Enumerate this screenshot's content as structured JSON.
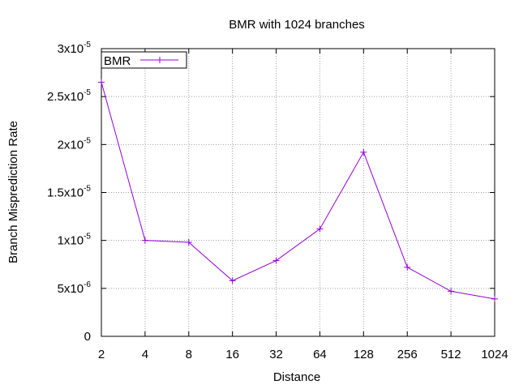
{
  "chart_data": {
    "type": "line",
    "title": "BMR with 1024 branches",
    "xlabel": "Distance",
    "ylabel": "Branch Misprediction Rate",
    "x_scale": "log2",
    "x": [
      2,
      4,
      8,
      16,
      32,
      64,
      128,
      256,
      512,
      1024
    ],
    "x_tick_labels": [
      "2",
      "4",
      "8",
      "16",
      "32",
      "64",
      "128",
      "256",
      "512",
      "1024"
    ],
    "y_ticks": [
      {
        "value": 0,
        "base": "0",
        "exp": ""
      },
      {
        "value": 5e-06,
        "base": "5x10",
        "exp": "-6"
      },
      {
        "value": 1e-05,
        "base": "1x10",
        "exp": "-5"
      },
      {
        "value": 1.5e-05,
        "base": "1.5x10",
        "exp": "-5"
      },
      {
        "value": 2e-05,
        "base": "2x10",
        "exp": "-5"
      },
      {
        "value": 2.5e-05,
        "base": "2.5x10",
        "exp": "-5"
      },
      {
        "value": 3e-05,
        "base": "3x10",
        "exp": "-5"
      }
    ],
    "ylim": [
      0,
      3e-05
    ],
    "xlim": [
      2,
      1024
    ],
    "grid": true,
    "legend_position": "top-left",
    "series": [
      {
        "name": "BMR",
        "color": "#9400d3",
        "marker": "plus",
        "values": [
          2.65e-05,
          1e-05,
          9.8e-06,
          5.8e-06,
          7.9e-06,
          1.12e-05,
          1.92e-05,
          7.2e-06,
          4.7e-06,
          3.9e-06
        ]
      }
    ]
  }
}
